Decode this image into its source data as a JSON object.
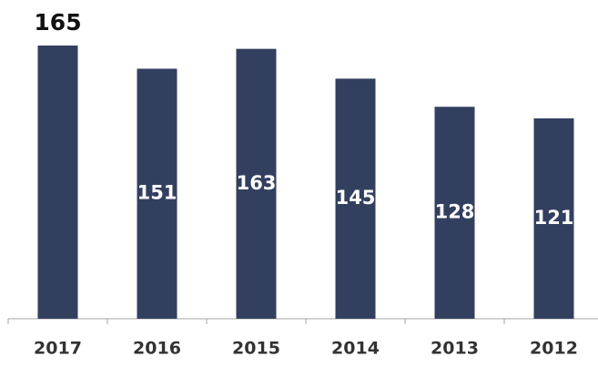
{
  "chart_data": {
    "type": "bar",
    "categories": [
      "2017",
      "2016",
      "2015",
      "2014",
      "2013",
      "2012"
    ],
    "values": [
      165,
      151,
      163,
      145,
      128,
      121
    ],
    "color": "#333f5f"
  }
}
